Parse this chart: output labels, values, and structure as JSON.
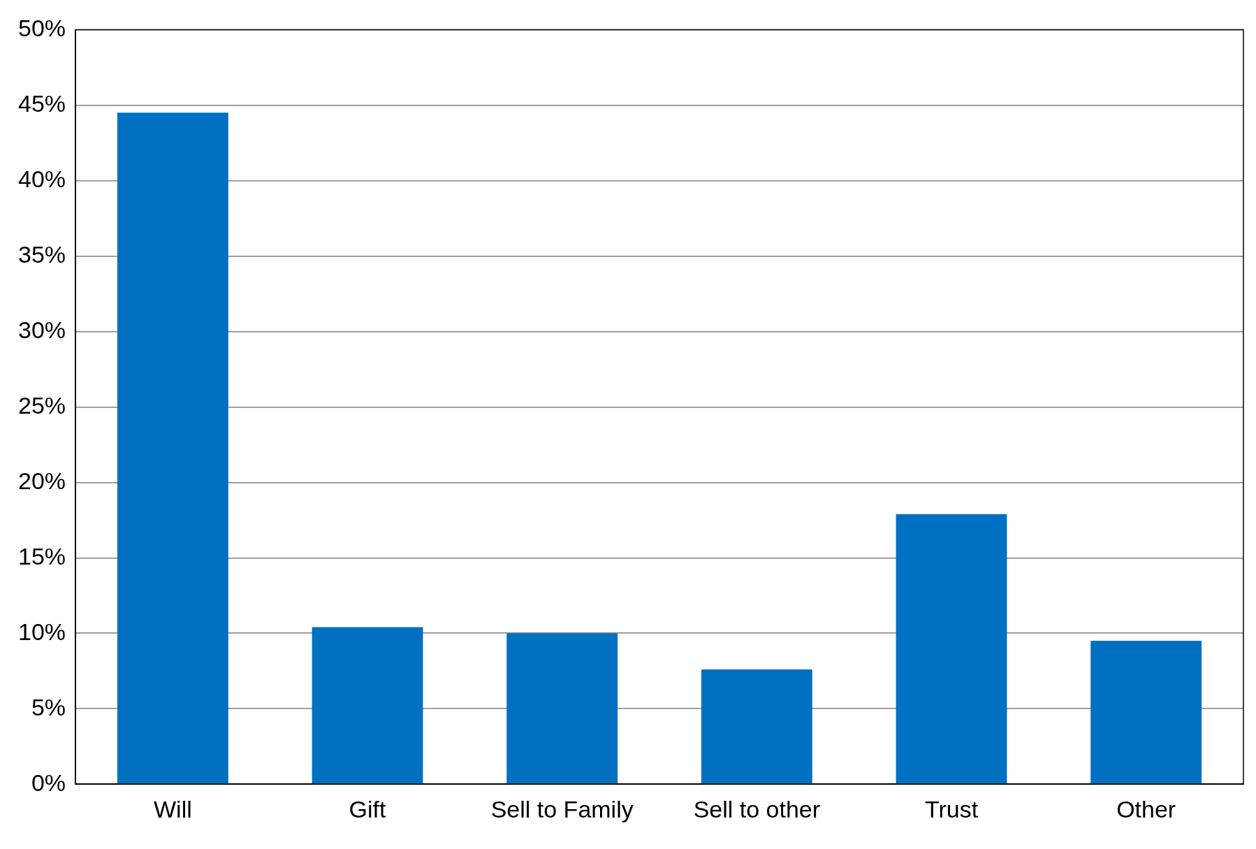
{
  "chart_data": {
    "type": "bar",
    "categories": [
      "Will",
      "Gift",
      "Sell to Family",
      "Sell to other",
      "Trust",
      "Other"
    ],
    "values": [
      44.5,
      10.4,
      10.0,
      7.6,
      17.9,
      9.5
    ],
    "color": "#0070c0",
    "ylim": [
      0,
      50
    ],
    "yticks": [
      {
        "value": 0,
        "label": "0%"
      },
      {
        "value": 5,
        "label": "5%"
      },
      {
        "value": 10,
        "label": "10%"
      },
      {
        "value": 15,
        "label": "15%"
      },
      {
        "value": 20,
        "label": "20%"
      },
      {
        "value": 25,
        "label": "25%"
      },
      {
        "value": 30,
        "label": "30%"
      },
      {
        "value": 35,
        "label": "35%"
      },
      {
        "value": 40,
        "label": "40%"
      },
      {
        "value": 45,
        "label": "45%"
      },
      {
        "value": 50,
        "label": "50%"
      }
    ],
    "grid": "y",
    "legend": false
  }
}
